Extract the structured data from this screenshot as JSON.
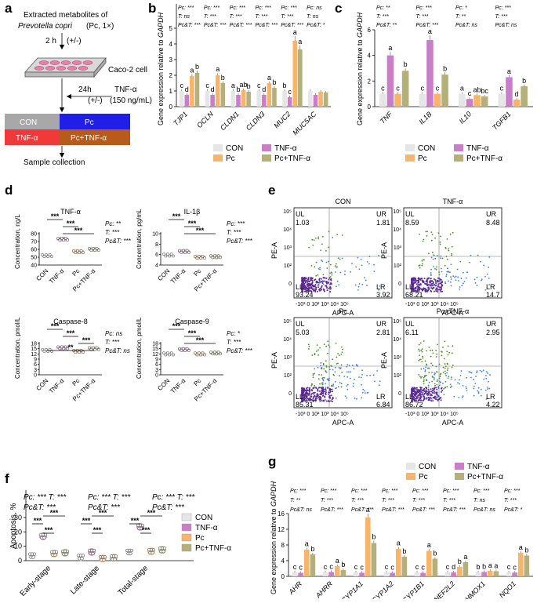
{
  "colors": {
    "con": "#e6e6e6",
    "tnf": "#c97fc7",
    "pc": "#f7b56b",
    "pctnf": "#b5b07a",
    "flow_purple": "#5b2a8c",
    "flow_blue": "#3f7fe0",
    "flow_green": "#4f8a2a",
    "blue_box": "#1f1fe6",
    "red_box": "#f03a3a",
    "orange_box": "#b85a1a",
    "grey_box": "#a8a8a8"
  },
  "panels": {
    "a": "a",
    "b": "b",
    "c": "c",
    "d": "d",
    "e": "e",
    "f": "f",
    "g": "g"
  },
  "legend": {
    "con": "CON",
    "tnf": "TNF-α",
    "pc": "Pc",
    "pctnf": "Pc+TNF-α"
  },
  "panel_a": {
    "line1": "Extracted metabolites of",
    "line2": "Prevotella copri",
    "line2b": " (Pc, 1×)",
    "step1": "2 h",
    "step1b": "(+/-)",
    "cell": "Caco-2 cell",
    "t24": "24h",
    "tnf": "TNF-α",
    "tnf_pm": "(+/-)",
    "tnf_dose": "(150 ng/mL)",
    "box_con": "CON",
    "box_pc": "Pc",
    "box_tnf": "TNF-α",
    "box_pctnf": "Pc+TNF-α",
    "collect": "Sample collection"
  },
  "panel_b": {
    "ylabel": "Gene expression relative to ",
    "ylabel_gene": "GAPDH",
    "yticks": [
      "0",
      "1",
      "2",
      "3",
      "4",
      "5"
    ],
    "genes": [
      "TJP1",
      "OCLN",
      "CLDN1",
      "CLDN3",
      "MUC2",
      "MUC5AC"
    ],
    "stats": [
      [
        "Pc: ***",
        "T: ns",
        "Pc&T: ***"
      ],
      [
        "Pc: ***",
        "T: ***",
        "Pc&T: ***"
      ],
      [
        "Pc: ***",
        "T: ***",
        "Pc&T: ***"
      ],
      [
        "Pc: ***",
        "T: ***",
        "Pc&T: ***"
      ],
      [
        "Pc: ***",
        "T: ***",
        "Pc&T: ***"
      ],
      [
        "Pc: ns",
        "T: ns",
        "Pc&T: *"
      ]
    ],
    "letters": [
      [
        "c",
        "d",
        "a",
        "b"
      ],
      [
        "c",
        "d",
        "a",
        "b"
      ],
      [
        "a",
        "b",
        "ab",
        "b"
      ],
      [
        "c",
        "d",
        "a",
        "b"
      ],
      [
        "b",
        "c",
        "a",
        "a"
      ],
      [
        "",
        "",
        "",
        ""
      ]
    ]
  },
  "chart_data": [
    {
      "type": "bar",
      "title": "Panel b",
      "ylabel": "Gene expression relative to GAPDH",
      "ylim": [
        0,
        5
      ],
      "categories": [
        "TJP1",
        "OCLN",
        "CLDN1",
        "CLDN3",
        "MUC2",
        "MUC5AC"
      ],
      "series": [
        {
          "name": "CON",
          "values": [
            1,
            1,
            1,
            1,
            1,
            1
          ]
        },
        {
          "name": "TNF-α",
          "values": [
            0.75,
            0.75,
            0.75,
            0.75,
            0.6,
            0.75
          ]
        },
        {
          "name": "Pc",
          "values": [
            1.95,
            2.0,
            1.05,
            1.5,
            4.2,
            0.95
          ]
        },
        {
          "name": "Pc+TNF-α",
          "values": [
            2.15,
            1.5,
            0.95,
            1.2,
            3.65,
            0.9
          ]
        }
      ]
    },
    {
      "type": "bar",
      "title": "Panel c",
      "ylabel": "Gene expression relative to GAPDH",
      "ylim": [
        0,
        6
      ],
      "categories": [
        "TNF",
        "IL1B",
        "IL10",
        "TGFB1"
      ],
      "series": [
        {
          "name": "CON",
          "values": [
            1,
            1,
            1,
            1
          ]
        },
        {
          "name": "TNF-α",
          "values": [
            4.0,
            5.2,
            0.6,
            2.3
          ]
        },
        {
          "name": "Pc",
          "values": [
            1.0,
            1.0,
            0.9,
            0.55
          ]
        },
        {
          "name": "Pc+TNF-α",
          "values": [
            2.8,
            2.5,
            0.8,
            1.6
          ]
        }
      ]
    },
    {
      "type": "bar",
      "title": "Panel f",
      "ylabel": "Apoptosis, %",
      "ylim": [
        0,
        30
      ],
      "categories": [
        "Early-stage",
        "Late-stage",
        "Total-stage"
      ],
      "series": [
        {
          "name": "CON",
          "values": [
            3.5,
            2.5,
            6.0
          ]
        },
        {
          "name": "TNF-α",
          "values": [
            17,
            6.0,
            23.5
          ]
        },
        {
          "name": "Pc",
          "values": [
            5.0,
            1.5,
            6.5
          ]
        },
        {
          "name": "Pc+TNF-α",
          "values": [
            5.5,
            2.0,
            7.5
          ]
        }
      ]
    },
    {
      "type": "bar",
      "title": "Panel g",
      "ylabel": "Gene expression relative to GAPDH",
      "ylim": [
        0,
        16
      ],
      "categories": [
        "AHR",
        "AHRR",
        "CYP1A1",
        "CYP1A2",
        "CYP1B1",
        "NEF2L2",
        "HMOX1",
        "NQO1"
      ],
      "series": [
        {
          "name": "CON",
          "values": [
            1,
            1,
            1,
            1,
            1,
            1,
            1,
            1
          ]
        },
        {
          "name": "TNF-α",
          "values": [
            0.9,
            1.1,
            0.9,
            0.9,
            0.9,
            1.0,
            1.1,
            0.95
          ]
        },
        {
          "name": "Pc",
          "values": [
            6.8,
            2.6,
            15.0,
            7.0,
            6.5,
            2.4,
            1.4,
            6.0
          ]
        },
        {
          "name": "Pc+TNF-α",
          "values": [
            5.6,
            1.6,
            8.5,
            5.0,
            4.5,
            3.6,
            1.3,
            5.3
          ]
        }
      ]
    }
  ],
  "panel_c": {
    "yticks": [
      "0",
      "2",
      "4",
      "6"
    ],
    "genes": [
      "TNF",
      "IL1B",
      "IL10",
      "TGFB1"
    ],
    "stats": [
      [
        "Pc: **",
        "T: ***",
        "Pc&T: **"
      ],
      [
        "Pc: ***",
        "T: ***",
        "Pc&T: ***"
      ],
      [
        "Pc: *",
        "T: **",
        "Pc&T: ns"
      ],
      [
        "Pc: ***",
        "T: ***",
        "Pc&T: ns"
      ]
    ],
    "letters": [
      [
        "c",
        "a",
        "c",
        "b"
      ],
      [
        "c",
        "a",
        "c",
        "b"
      ],
      [
        "a",
        "c",
        "ab",
        "bc"
      ],
      [
        "c",
        "a",
        "d",
        "b"
      ]
    ]
  },
  "panel_d": {
    "ylabel_tnf": "Concentration, ng/L",
    "title_tnf": "TNF-α",
    "yticks_tnf": [
      "40",
      "50",
      "60",
      "70",
      "80"
    ],
    "stats_tnf": [
      "Pc: **",
      "T: ***",
      "Pc&T: ***"
    ],
    "ylabel_il": "Concentration, pg/mL",
    "title_il": "IL-1β",
    "yticks_il": [
      "4",
      "6",
      "8",
      "10"
    ],
    "stats_il": [
      "Pc: ***",
      "T: ***",
      "Pc&T: ***"
    ],
    "ylabel_c8": "Concentration, pmol/L",
    "title_c8": "Caspase-8",
    "yticks_c8": [
      "0",
      "3",
      "6",
      "9",
      "12",
      "15",
      "18"
    ],
    "stats_c8": [
      "Pc: ns",
      "T: ***",
      "Pc&T: ns"
    ],
    "ylabel_c9": "Concentration, pmol/L",
    "title_c9": "Caspase-9",
    "yticks_c9": [
      "0",
      "3",
      "6",
      "9",
      "12",
      "15",
      "18"
    ],
    "stats_c9": [
      "Pc: *",
      "T: ***",
      "Pc&T: ***"
    ],
    "groups": [
      "CON",
      "TNF-α",
      "Pc",
      "Pc+TNF-α"
    ],
    "sig": [
      "***",
      "**"
    ],
    "values_tnf": [
      52,
      73,
      57,
      60
    ],
    "values_il": [
      5.9,
      6.6,
      5.5,
      5.6
    ],
    "values_c8": [
      14,
      15.5,
      13.5,
      15
    ],
    "values_c9": [
      12,
      14.5,
      12,
      12.5
    ]
  },
  "panel_e": {
    "plots": [
      {
        "title": "CON",
        "ul": "1.03",
        "ur": "1.81",
        "ll": "93.24",
        "lr": "3.92"
      },
      {
        "title": "TNF-α",
        "ul": "8.59",
        "ur": "8.48",
        "ll": "68.21",
        "lr": "14.7"
      },
      {
        "title": "Pc",
        "ul": "5.03",
        "ur": "2.81",
        "ll": "85.31",
        "lr": "6.84"
      },
      {
        "title": "Pc+TNF-α",
        "ul": "6.11",
        "ur": "2.95",
        "ll": "86.72",
        "lr": "4.22"
      }
    ],
    "xlabel": "APC-A",
    "ylabel": "PE-A",
    "xticks": [
      "-10",
      "3",
      "0",
      "10",
      "2",
      "10",
      "3",
      "10",
      "4",
      "10",
      "5"
    ],
    "q": [
      "UL",
      "UR",
      "LL",
      "LR"
    ]
  },
  "panel_f": {
    "stats": [
      [
        "Pc: *** T: ***",
        "Pc&T: ***"
      ],
      [
        "Pc: *** T: ***",
        "Pc&T: ***"
      ],
      [
        "Pc: *** T: ***",
        "Pc&T: ***"
      ]
    ],
    "ylabel": "Apoptosis, %",
    "yticks": [
      "0",
      "10",
      "20",
      "30"
    ],
    "categories": [
      "Early-stage",
      "Late-stage",
      "Total-stage"
    ],
    "sig": "***"
  },
  "panel_g": {
    "genes": [
      "AHR",
      "AHRR",
      "CYP1A1",
      "CYP1A2",
      "CYP1B1",
      "NEF2L2",
      "HMOX1",
      "NQO1"
    ],
    "stats": [
      [
        "Pc: ***",
        "T: **",
        "Pc&T: ns"
      ],
      [
        "Pc: ***",
        "T: ***",
        "Pc&T: ***"
      ],
      [
        "Pc: ***",
        "T: ***",
        "Pc&T: ***"
      ],
      [
        "Pc: ***",
        "T: ***",
        "Pc&T: ***"
      ],
      [
        "Pc: ***",
        "T: ***",
        "Pc&T: ***"
      ],
      [
        "Pc: ***",
        "T: ***",
        "Pc&T: ***"
      ],
      [
        "Pc: ***",
        "T: ns",
        "Pc&T: ns"
      ],
      [
        "Pc: ***",
        "T: ***",
        "Pc&T: *"
      ]
    ],
    "yticks": [
      "0",
      "4",
      "8",
      "12",
      "16"
    ],
    "letters": [
      [
        "c",
        "c",
        "a",
        "b"
      ],
      [
        "c",
        "c",
        "a",
        "b"
      ],
      [
        "c",
        "c",
        "a",
        "b"
      ],
      [
        "c",
        "c",
        "a",
        "b"
      ],
      [
        "c",
        "c",
        "a",
        "b"
      ],
      [
        "c",
        "d",
        "b",
        "a"
      ],
      [
        "b",
        "b",
        "a",
        "a"
      ],
      [
        "c",
        "c",
        "a",
        "b"
      ]
    ]
  }
}
